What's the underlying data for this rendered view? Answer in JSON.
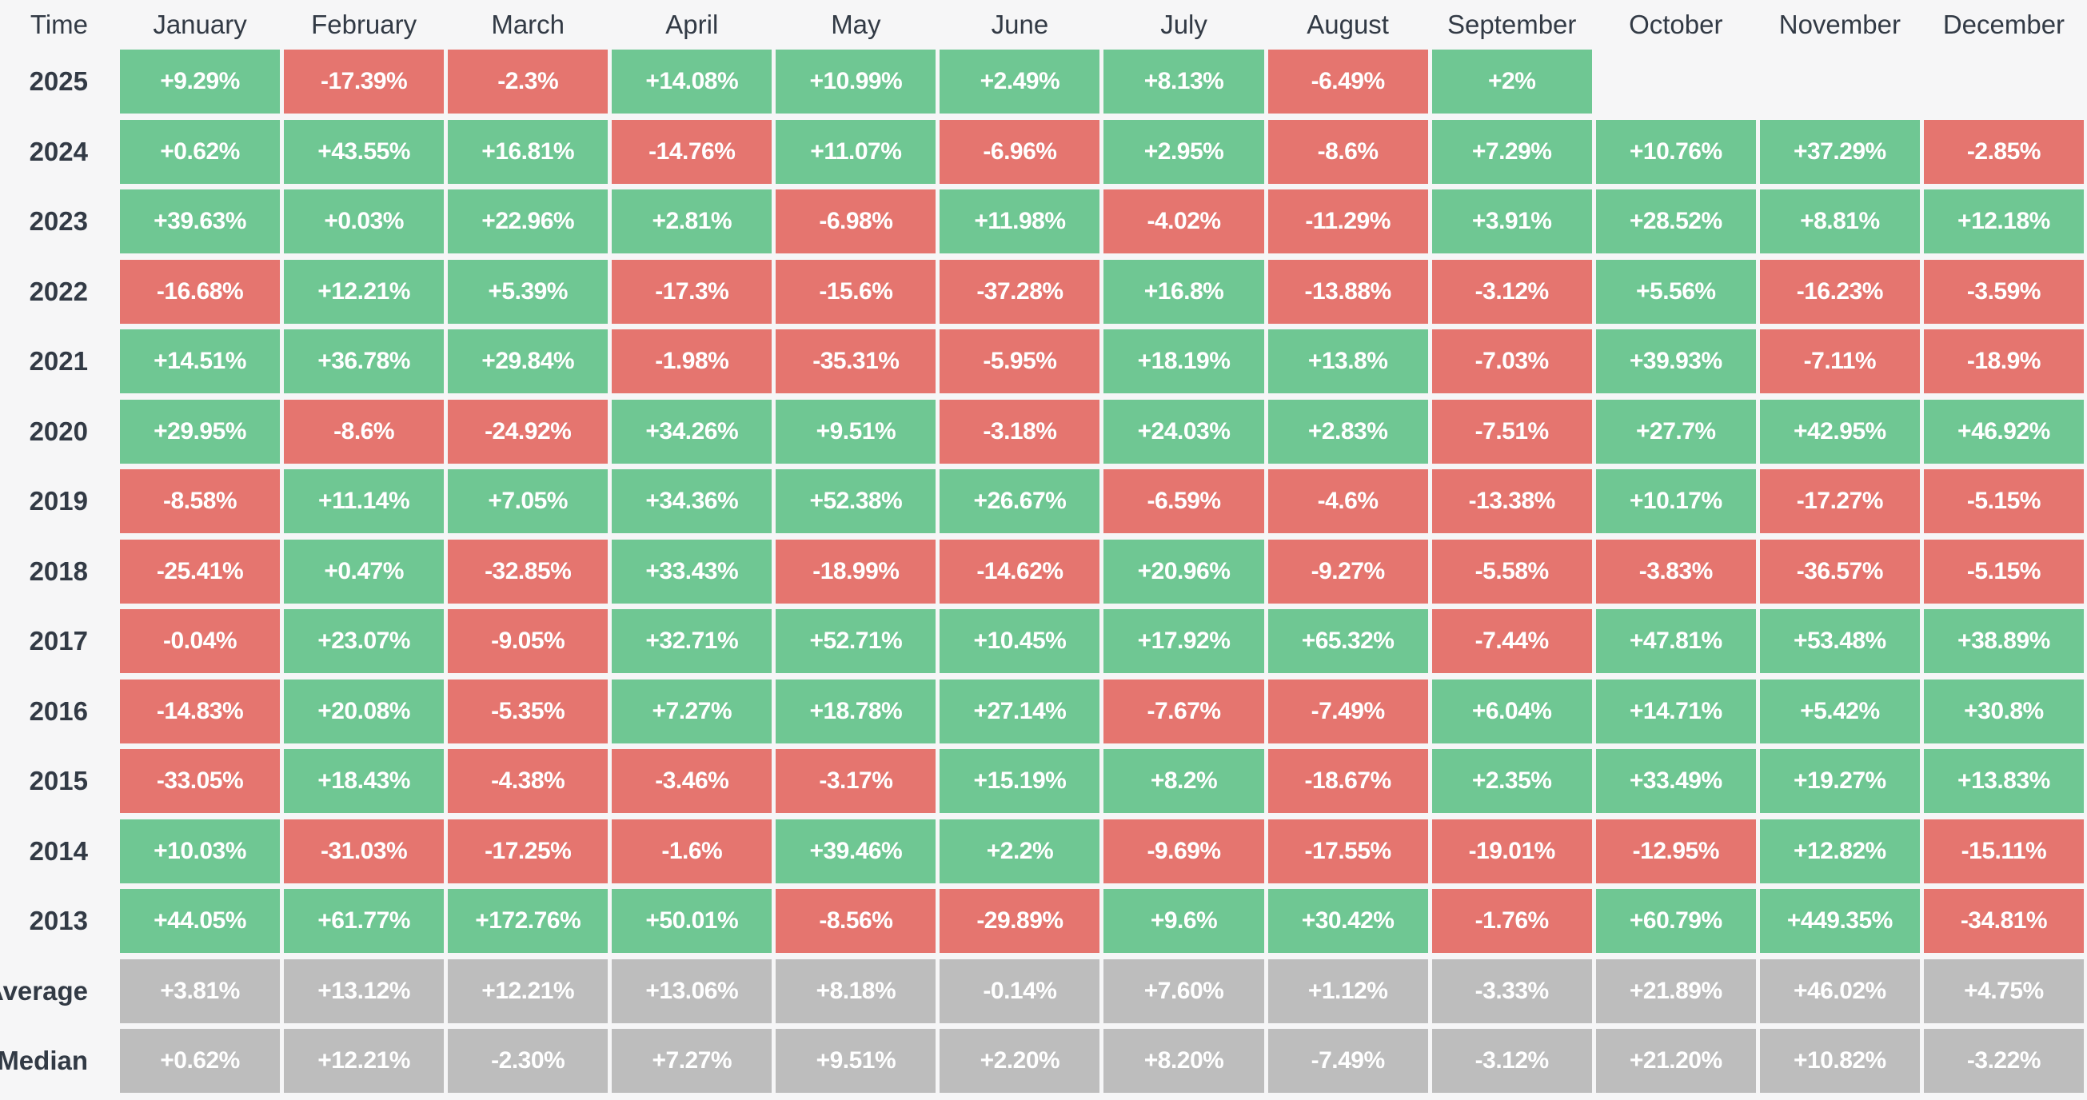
{
  "chart_data": {
    "type": "heatmap",
    "corner_label": "Time",
    "columns": [
      "January",
      "February",
      "March",
      "April",
      "May",
      "June",
      "July",
      "August",
      "September",
      "October",
      "November",
      "December"
    ],
    "rows": [
      {
        "label": "2025",
        "kind": "year",
        "values": [
          "+9.29%",
          "-17.39%",
          "-2.3%",
          "+14.08%",
          "+10.99%",
          "+2.49%",
          "+8.13%",
          "-6.49%",
          "+2%",
          "",
          "",
          ""
        ]
      },
      {
        "label": "2024",
        "kind": "year",
        "values": [
          "+0.62%",
          "+43.55%",
          "+16.81%",
          "-14.76%",
          "+11.07%",
          "-6.96%",
          "+2.95%",
          "-8.6%",
          "+7.29%",
          "+10.76%",
          "+37.29%",
          "-2.85%"
        ]
      },
      {
        "label": "2023",
        "kind": "year",
        "values": [
          "+39.63%",
          "+0.03%",
          "+22.96%",
          "+2.81%",
          "-6.98%",
          "+11.98%",
          "-4.02%",
          "-11.29%",
          "+3.91%",
          "+28.52%",
          "+8.81%",
          "+12.18%"
        ]
      },
      {
        "label": "2022",
        "kind": "year",
        "values": [
          "-16.68%",
          "+12.21%",
          "+5.39%",
          "-17.3%",
          "-15.6%",
          "-37.28%",
          "+16.8%",
          "-13.88%",
          "-3.12%",
          "+5.56%",
          "-16.23%",
          "-3.59%"
        ]
      },
      {
        "label": "2021",
        "kind": "year",
        "values": [
          "+14.51%",
          "+36.78%",
          "+29.84%",
          "-1.98%",
          "-35.31%",
          "-5.95%",
          "+18.19%",
          "+13.8%",
          "-7.03%",
          "+39.93%",
          "-7.11%",
          "-18.9%"
        ]
      },
      {
        "label": "2020",
        "kind": "year",
        "values": [
          "+29.95%",
          "-8.6%",
          "-24.92%",
          "+34.26%",
          "+9.51%",
          "-3.18%",
          "+24.03%",
          "+2.83%",
          "-7.51%",
          "+27.7%",
          "+42.95%",
          "+46.92%"
        ]
      },
      {
        "label": "2019",
        "kind": "year",
        "values": [
          "-8.58%",
          "+11.14%",
          "+7.05%",
          "+34.36%",
          "+52.38%",
          "+26.67%",
          "-6.59%",
          "-4.6%",
          "-13.38%",
          "+10.17%",
          "-17.27%",
          "-5.15%"
        ]
      },
      {
        "label": "2018",
        "kind": "year",
        "values": [
          "-25.41%",
          "+0.47%",
          "-32.85%",
          "+33.43%",
          "-18.99%",
          "-14.62%",
          "+20.96%",
          "-9.27%",
          "-5.58%",
          "-3.83%",
          "-36.57%",
          "-5.15%"
        ]
      },
      {
        "label": "2017",
        "kind": "year",
        "values": [
          "-0.04%",
          "+23.07%",
          "-9.05%",
          "+32.71%",
          "+52.71%",
          "+10.45%",
          "+17.92%",
          "+65.32%",
          "-7.44%",
          "+47.81%",
          "+53.48%",
          "+38.89%"
        ]
      },
      {
        "label": "2016",
        "kind": "year",
        "values": [
          "-14.83%",
          "+20.08%",
          "-5.35%",
          "+7.27%",
          "+18.78%",
          "+27.14%",
          "-7.67%",
          "-7.49%",
          "+6.04%",
          "+14.71%",
          "+5.42%",
          "+30.8%"
        ]
      },
      {
        "label": "2015",
        "kind": "year",
        "values": [
          "-33.05%",
          "+18.43%",
          "-4.38%",
          "-3.46%",
          "-3.17%",
          "+15.19%",
          "+8.2%",
          "-18.67%",
          "+2.35%",
          "+33.49%",
          "+19.27%",
          "+13.83%"
        ]
      },
      {
        "label": "2014",
        "kind": "year",
        "values": [
          "+10.03%",
          "-31.03%",
          "-17.25%",
          "-1.6%",
          "+39.46%",
          "+2.2%",
          "-9.69%",
          "-17.55%",
          "-19.01%",
          "-12.95%",
          "+12.82%",
          "-15.11%"
        ]
      },
      {
        "label": "2013",
        "kind": "year",
        "values": [
          "+44.05%",
          "+61.77%",
          "+172.76%",
          "+50.01%",
          "-8.56%",
          "-29.89%",
          "+9.6%",
          "+30.42%",
          "-1.76%",
          "+60.79%",
          "+449.35%",
          "-34.81%"
        ]
      },
      {
        "label": "Average",
        "kind": "summary",
        "values": [
          "+3.81%",
          "+13.12%",
          "+12.21%",
          "+13.06%",
          "+8.18%",
          "-0.14%",
          "+7.60%",
          "+1.12%",
          "-3.33%",
          "+21.89%",
          "+46.02%",
          "+4.75%"
        ]
      },
      {
        "label": "Median",
        "kind": "summary",
        "values": [
          "+0.62%",
          "+12.21%",
          "-2.30%",
          "+7.27%",
          "+9.51%",
          "+2.20%",
          "+8.20%",
          "-7.49%",
          "-3.12%",
          "+21.20%",
          "+10.82%",
          "-3.22%"
        ]
      }
    ],
    "colors": {
      "positive": "#6fc793",
      "negative": "#e5756f",
      "summary": "#bdbdbd",
      "cell_text": "#ffffff",
      "header_text": "#323a45",
      "background": "#f6f6f7"
    },
    "legend_position": "none",
    "grid": false
  }
}
